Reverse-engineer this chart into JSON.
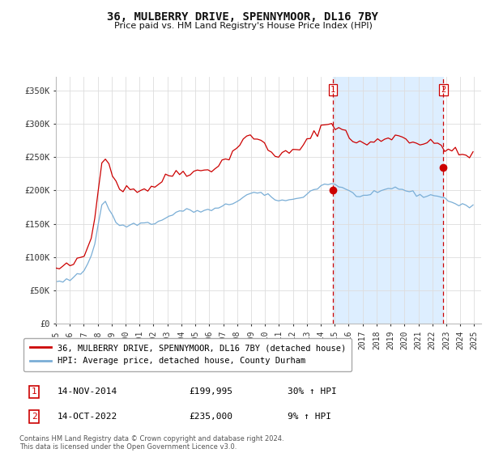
{
  "title": "36, MULBERRY DRIVE, SPENNYMOOR, DL16 7BY",
  "subtitle": "Price paid vs. HM Land Registry's House Price Index (HPI)",
  "ylabel_ticks": [
    "£0",
    "£50K",
    "£100K",
    "£150K",
    "£200K",
    "£250K",
    "£300K",
    "£350K"
  ],
  "ytick_values": [
    0,
    50000,
    100000,
    150000,
    200000,
    250000,
    300000,
    350000
  ],
  "ylim": [
    0,
    370000
  ],
  "xlim_start": 1995.0,
  "xlim_end": 2025.5,
  "red_line_color": "#cc0000",
  "blue_line_color": "#7aaed6",
  "shade_color": "#ddeeff",
  "vline1_x": 2014.87,
  "vline2_x": 2022.79,
  "vline_color": "#cc0000",
  "marker1_y": 199995,
  "marker2_y": 235000,
  "legend_red": "36, MULBERRY DRIVE, SPENNYMOOR, DL16 7BY (detached house)",
  "legend_blue": "HPI: Average price, detached house, County Durham",
  "annotation1": [
    "1",
    "14-NOV-2014",
    "£199,995",
    "30% ↑ HPI"
  ],
  "annotation2": [
    "2",
    "14-OCT-2022",
    "£235,000",
    "9% ↑ HPI"
  ],
  "footer": "Contains HM Land Registry data © Crown copyright and database right 2024.\nThis data is licensed under the Open Government Licence v3.0.",
  "background_color": "#ffffff",
  "grid_color": "#dddddd",
  "x_years": [
    1995,
    1996,
    1997,
    1998,
    1999,
    2000,
    2001,
    2002,
    2003,
    2004,
    2005,
    2006,
    2007,
    2008,
    2009,
    2010,
    2011,
    2012,
    2013,
    2014,
    2015,
    2016,
    2017,
    2018,
    2019,
    2020,
    2021,
    2022,
    2023,
    2024,
    2025
  ],
  "red_base_y": [
    82000,
    83000,
    84500,
    86000,
    88000,
    90000,
    93000,
    97000,
    103000,
    113000,
    130000,
    160000,
    200000,
    248000,
    253000,
    242000,
    225000,
    213000,
    205000,
    203000,
    202000,
    202000,
    202000,
    202000,
    202000,
    202000,
    203000,
    205000,
    207000,
    210000,
    215000,
    218000,
    222000,
    225000,
    227000,
    228000,
    228000,
    228000,
    228000,
    228000,
    228000,
    229000,
    231000,
    232000,
    233000,
    235000,
    238000,
    242000,
    246000,
    252000,
    258000,
    264000,
    270000,
    275000,
    278000,
    280000,
    280000,
    278000,
    274000,
    268000,
    262000,
    258000,
    255000,
    254000,
    254000,
    255000,
    256000,
    258000,
    260000,
    263000,
    267000,
    272000,
    278000,
    284000,
    290000,
    295000,
    298000,
    300000,
    300000,
    298000,
    295000,
    290000,
    285000,
    280000,
    276000,
    273000,
    271000,
    270000,
    270000,
    271000,
    272000,
    274000,
    276000,
    278000,
    280000,
    281000,
    282000,
    281000,
    280000,
    278000,
    276000,
    274000,
    272000,
    271000,
    270000,
    270000,
    270000,
    270000,
    270000,
    268000,
    265000,
    262000,
    259000,
    256000,
    254000,
    253000,
    253000,
    253000,
    254000
  ],
  "blue_base_y": [
    62000,
    63000,
    64000,
    65500,
    67000,
    69000,
    72000,
    76000,
    81000,
    90000,
    103000,
    122000,
    150000,
    180000,
    183000,
    173000,
    161000,
    153000,
    148000,
    147000,
    147000,
    148000,
    149000,
    150000,
    151000,
    151000,
    151000,
    151000,
    152000,
    153000,
    155000,
    158000,
    161000,
    164000,
    167000,
    169000,
    170000,
    170000,
    170000,
    169000,
    169000,
    169000,
    169000,
    170000,
    171000,
    172000,
    173000,
    175000,
    177000,
    179000,
    181000,
    184000,
    187000,
    190000,
    193000,
    195000,
    196000,
    196000,
    195000,
    193000,
    191000,
    189000,
    187000,
    186000,
    185000,
    185000,
    185000,
    186000,
    188000,
    190000,
    192000,
    195000,
    198000,
    201000,
    204000,
    207000,
    209000,
    210000,
    210000,
    209000,
    207000,
    204000,
    201000,
    198000,
    195000,
    193000,
    192000,
    192000,
    192000,
    193000,
    194000,
    196000,
    198000,
    200000,
    202000,
    203000,
    204000,
    203000,
    202000,
    200000,
    198000,
    196000,
    194000,
    193000,
    192000,
    192000,
    192000,
    192000,
    193000,
    191000,
    188000,
    185000,
    182000,
    180000,
    178000,
    177000,
    177000,
    177000,
    178000
  ]
}
